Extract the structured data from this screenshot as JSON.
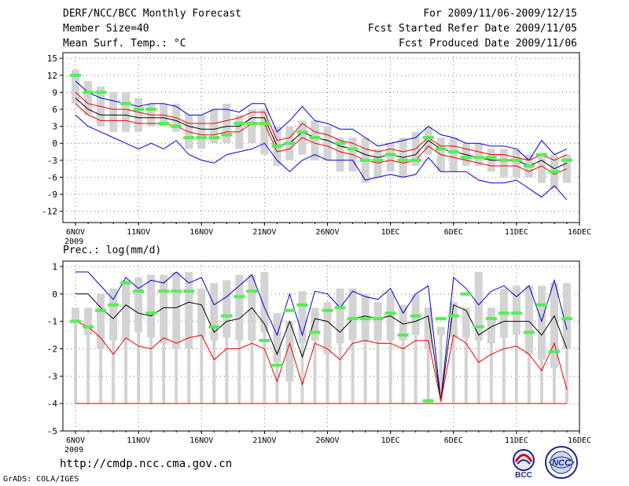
{
  "header": {
    "title": "DERF/NCC/BCC Monthly Forecast",
    "member_size": "Member Size=40",
    "variable": "Mean Surf. Temp.: °C",
    "period": "For 2009/11/06-2009/12/15",
    "refer_date": "Fcst Started Refer Date 2009/11/05",
    "produced_date": "Fcst Produced Date 2009/11/06"
  },
  "footer": {
    "url": "http://cmdp.ncc.cma.gov.cn",
    "grads": "GrADS: COLA/IGES",
    "logo_bcc": "BCC",
    "logo_ncc": "NCC"
  },
  "colors": {
    "max_line": "#0000dd",
    "mean_line": "#000000",
    "spread_line": "#ee0000",
    "box": "#d3d3d3",
    "obs": "#55ee55"
  },
  "chart_data": [
    {
      "type": "line",
      "title": "Mean Surf. Temp.: °C",
      "x_tick_labels": [
        "6NOV",
        "11NOV",
        "16NOV",
        "21NOV",
        "26NOV",
        "1DEC",
        "6DEC",
        "11DEC",
        "16DEC"
      ],
      "x_tick_days": [
        0,
        5,
        10,
        15,
        20,
        25,
        30,
        35,
        40
      ],
      "x_sub_label": "2009",
      "xlim": [
        -1,
        40
      ],
      "ylim": [
        -14,
        16
      ],
      "y_ticks": [
        15,
        12,
        9,
        6,
        3,
        0,
        -3,
        -6,
        -9,
        -12
      ],
      "box_low": [
        7,
        5,
        3,
        2,
        2,
        2,
        3,
        3,
        2,
        -1,
        -1,
        0,
        0,
        -1,
        0,
        -2,
        -4,
        -3,
        -2,
        -3,
        -3,
        -5,
        -5,
        -7,
        -6,
        -5,
        -6,
        -4,
        -2,
        -5,
        -5,
        -4,
        -4,
        -5,
        -6,
        -6,
        -6,
        -7,
        -8,
        -7
      ],
      "box_high": [
        13,
        11,
        10,
        9,
        9,
        8,
        7,
        7,
        7,
        5,
        5,
        6,
        7,
        5,
        6,
        6,
        3,
        3,
        4,
        4,
        3,
        1,
        1,
        1,
        -1,
        0,
        1,
        2,
        3,
        1,
        1,
        0,
        0,
        -1,
        -1,
        -1,
        -2,
        -2,
        -2,
        -2
      ],
      "series": [
        {
          "name": "Upper",
          "values": [
            11,
            9,
            8,
            7.5,
            7,
            6.5,
            7,
            7,
            6.5,
            5,
            5,
            6,
            6,
            5.5,
            7,
            7,
            2,
            4,
            6.5,
            4,
            3.5,
            2.5,
            2.5,
            1,
            -0.5,
            0,
            0.5,
            1,
            3,
            1.5,
            1,
            0,
            0,
            -0.5,
            -0.5,
            -1,
            -3,
            0.5,
            -2,
            -1
          ]
        },
        {
          "name": "Spread Upper",
          "values": [
            9,
            7,
            6.5,
            6,
            6,
            5.5,
            5,
            5,
            4.5,
            3.5,
            3.5,
            3.5,
            4,
            4.5,
            5.5,
            5.5,
            0.5,
            1,
            3.5,
            2,
            1.5,
            0.5,
            0,
            -1,
            -1.5,
            -1,
            -1.5,
            -1,
            1,
            -0.5,
            -0.5,
            -1,
            -1.5,
            -2,
            -2,
            -2.5,
            -3,
            -2,
            -3,
            -2
          ]
        },
        {
          "name": "Mean",
          "values": [
            8,
            6,
            5,
            5,
            5,
            4.5,
            4.5,
            4.5,
            4,
            3,
            2.5,
            2.5,
            3,
            3,
            4.5,
            4.5,
            -0.5,
            0,
            2,
            1,
            0.5,
            -0.5,
            -1,
            -2,
            -2.5,
            -2,
            -2.5,
            -2,
            0.5,
            -1,
            -1.5,
            -2,
            -2.5,
            -3,
            -3,
            -3,
            -4,
            -3,
            -4.5,
            -3.5
          ]
        },
        {
          "name": "Spread Lower",
          "values": [
            7,
            5,
            4,
            4,
            4,
            3.5,
            3.5,
            3.5,
            3,
            2,
            1.5,
            1.5,
            2,
            2,
            3.5,
            3.5,
            -1.5,
            -1,
            1,
            0,
            -0.5,
            -1.5,
            -2,
            -3,
            -3.5,
            -3,
            -3.5,
            -3,
            -0.5,
            -2,
            -2.5,
            -3,
            -3.5,
            -4,
            -4,
            -4,
            -5,
            -4,
            -5.5,
            -4.5
          ]
        },
        {
          "name": "Lower",
          "values": [
            5,
            3,
            2,
            1,
            0,
            -1,
            0,
            -1,
            0.5,
            -2,
            -3,
            -3.5,
            -2,
            -1.5,
            -1,
            0,
            -3,
            -5,
            -3,
            -2,
            -3,
            -3,
            -3,
            -6.5,
            -6,
            -5.5,
            -6,
            -5.5,
            -2.5,
            -5,
            -5,
            -5,
            -6.5,
            -7,
            -7,
            -6.5,
            -8,
            -9.5,
            -7.5,
            -10
          ]
        }
      ],
      "obs_days": [
        0,
        1,
        2,
        4,
        5,
        6,
        7,
        8,
        9,
        10,
        11,
        12,
        13,
        14,
        15,
        16,
        17,
        18,
        19,
        21,
        22,
        23,
        24,
        25,
        26,
        27,
        28,
        29,
        30,
        31,
        32,
        33,
        34,
        35,
        36,
        37,
        38,
        39
      ],
      "obs": [
        12,
        9,
        9,
        7,
        6,
        6,
        3.5,
        3,
        1,
        1,
        1,
        1.5,
        3.5,
        3.5,
        3.5,
        -0.5,
        0,
        2,
        1,
        0,
        -1,
        -3,
        -3,
        -2,
        -3,
        -3,
        1,
        -1,
        -1.5,
        -2.5,
        -2.5,
        -2.5,
        -3,
        -3,
        -4,
        -2,
        -5,
        -3
      ]
    },
    {
      "type": "line",
      "title": "Prec.: log(mm/d)",
      "x_tick_labels": [
        "6NOV",
        "11NOV",
        "16NOV",
        "21NOV",
        "26NOV",
        "1DEC",
        "6DEC",
        "11DEC",
        "16DEC"
      ],
      "x_tick_days": [
        0,
        5,
        10,
        15,
        20,
        25,
        30,
        35,
        40
      ],
      "x_sub_label": "2009",
      "xlim": [
        -1,
        40
      ],
      "ylim": [
        -5,
        1.2
      ],
      "y_ticks": [
        1,
        0,
        -1,
        -2,
        -3,
        -4,
        -5
      ],
      "floor_value": -4,
      "box_low": [
        -1,
        -1.5,
        -2,
        -1.7,
        -1.7,
        -1.4,
        -1.6,
        -1.8,
        -2,
        -2,
        -1.6,
        -1.7,
        -1.6,
        -1.7,
        -1.7,
        -1.4,
        -2.5,
        -3.2,
        -1.8,
        -1.7,
        -2.2,
        -1.8,
        -1.7,
        -1.7,
        -1.7,
        -1.7,
        -1.7,
        -1.5,
        -2,
        -1.5,
        -1.6,
        -1.6,
        -1.7,
        -1.8,
        -1.6,
        -1.5,
        -2.2,
        -2.4,
        -2.7,
        -2
      ],
      "box_high": [
        -0.5,
        -0.5,
        0,
        0.2,
        0.5,
        0.6,
        0.7,
        0.7,
        0.8,
        0.8,
        0.2,
        0.4,
        0.5,
        0.7,
        0.7,
        0.8,
        -0.7,
        -1,
        0.1,
        -0.5,
        -0.3,
        0.2,
        0.2,
        0,
        -0.3,
        0.1,
        -0.4,
        0,
        -0.5,
        -1.2,
        -0.3,
        -0.5,
        0.8,
        -0.5,
        0.2,
        0.3,
        0.3,
        0.3,
        0.4,
        0.4
      ],
      "box_min": [
        -4,
        -4,
        -4,
        -4,
        -4,
        -4,
        -4,
        -4,
        -4,
        -4,
        -4,
        -4,
        -4,
        -4,
        -4,
        -4,
        -4,
        -4,
        -4,
        -4,
        -4,
        -4,
        -4,
        -4,
        -4,
        -4,
        -4,
        -4,
        -4,
        -4,
        -4,
        -4,
        -4,
        -4,
        -4,
        -4,
        -4,
        -4,
        -4,
        -4
      ],
      "series": [
        {
          "name": "Upper",
          "values": [
            0.8,
            0.8,
            0.3,
            -0.2,
            0.6,
            0.2,
            0.5,
            0.4,
            0.8,
            0.4,
            0.6,
            -0.4,
            -0.1,
            0.3,
            0.7,
            -0.5,
            -1.5,
            0,
            -1.5,
            0.1,
            0,
            -0.5,
            0.1,
            -0.1,
            -0.2,
            0.2,
            -0.7,
            0,
            0.3,
            -3.9,
            0.6,
            0.2,
            -0.4,
            0.1,
            0.3,
            -0.1,
            0.3,
            -1,
            0.5,
            -1.3
          ]
        },
        {
          "name": "Mean",
          "values": [
            0,
            0,
            -0.5,
            -0.9,
            -0.4,
            -0.7,
            -0.8,
            -0.5,
            -0.5,
            -0.3,
            -0.4,
            -1.4,
            -1,
            -0.9,
            -0.5,
            -1.1,
            -2.2,
            -1,
            -2.3,
            -0.9,
            -1,
            -1.4,
            -0.9,
            -0.8,
            -0.9,
            -0.8,
            -1.1,
            -1,
            -0.8,
            -3.9,
            -0.4,
            -0.6,
            -1.5,
            -1.2,
            -1,
            -1,
            -1,
            -1.5,
            -0.8,
            -2
          ]
        },
        {
          "name": "Lower",
          "values": [
            -1,
            -1.2,
            -1.6,
            -2.2,
            -1.6,
            -1.9,
            -2,
            -1.6,
            -1.8,
            -1.6,
            -1.5,
            -2.4,
            -2,
            -2,
            -1.8,
            -2,
            -3.2,
            -1.8,
            -3.3,
            -1.8,
            -2,
            -2.4,
            -1.8,
            -1.7,
            -1.8,
            -1.8,
            -2,
            -1.7,
            -1.7,
            -3.9,
            -1.5,
            -1.8,
            -2.5,
            -2.2,
            -2,
            -1.9,
            -2.2,
            -2.8,
            -1.8,
            -3.5
          ]
        }
      ],
      "obs_days": [
        0,
        1,
        2,
        3,
        4,
        5,
        6,
        7,
        8,
        9,
        11,
        12,
        13,
        14,
        15,
        16,
        17,
        18,
        19,
        20,
        21,
        22,
        23,
        24,
        25,
        26,
        27,
        28,
        29,
        30,
        31,
        32,
        33,
        34,
        35,
        36,
        37,
        38,
        39
      ],
      "obs": [
        -1,
        -1.2,
        -0.6,
        -0.4,
        0.4,
        0.1,
        -0.7,
        0.1,
        0.1,
        0.1,
        -1.2,
        -0.8,
        -0.1,
        0.1,
        -1.7,
        -2.6,
        -0.6,
        -0.4,
        -1.4,
        -0.6,
        -0.5,
        -0.9,
        -0.9,
        -0.9,
        -0.7,
        -1.5,
        -0.8,
        -3.9,
        -0.9,
        -0.8,
        0,
        -1.2,
        -0.9,
        -0.7,
        -0.7,
        -1.4,
        -0.4,
        -2.1,
        -0.9
      ]
    }
  ]
}
